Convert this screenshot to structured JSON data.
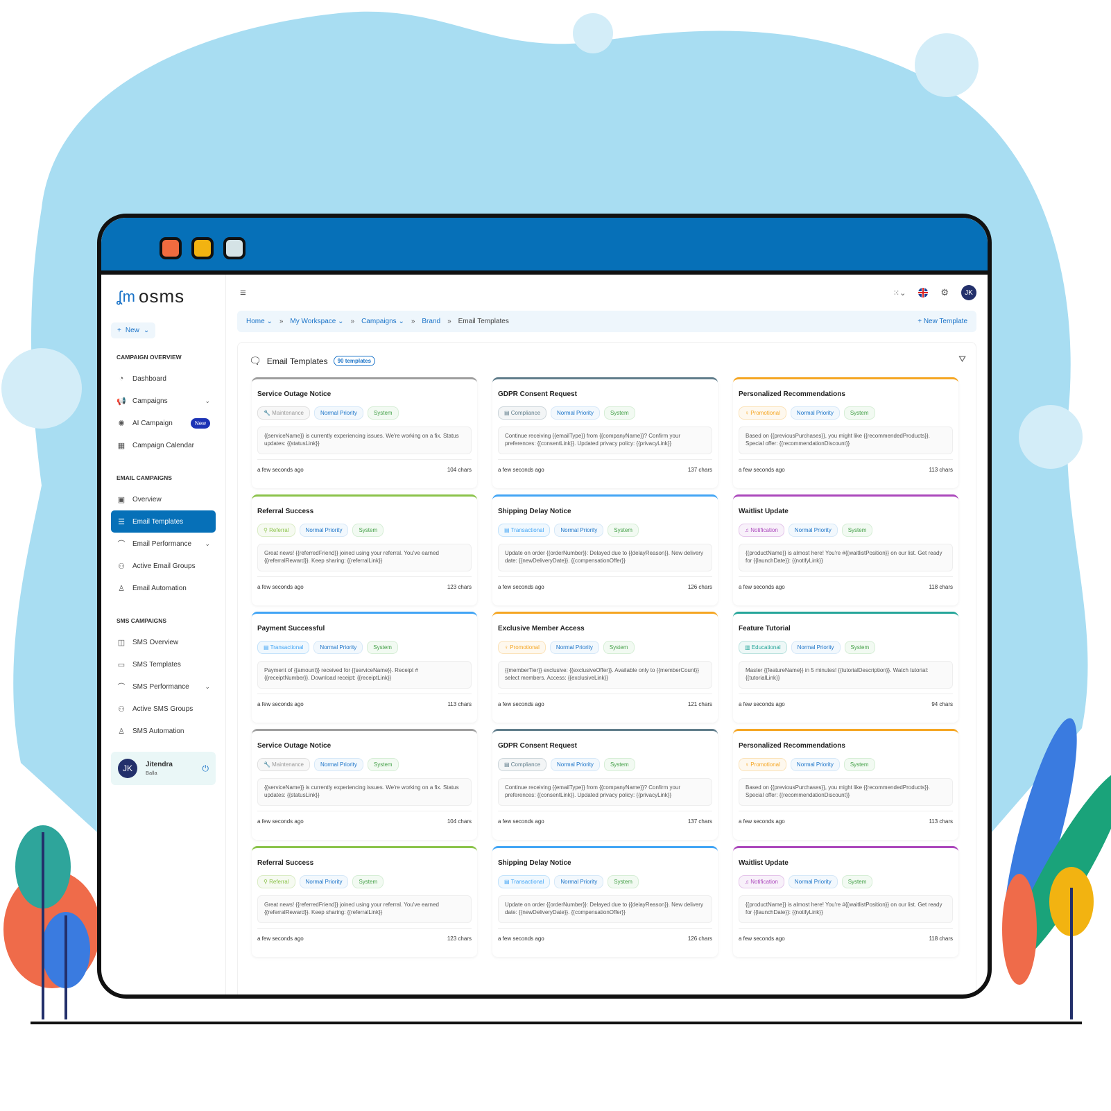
{
  "colors": {
    "brand": "#0670b8",
    "background_blob": "#a8ddf2"
  },
  "window_controls": [
    {
      "name": "close",
      "color": "#f06b3f"
    },
    {
      "name": "minimize",
      "color": "#f2b311"
    },
    {
      "name": "maximize",
      "color": "#d5e3e6"
    }
  ],
  "sidebar": {
    "logo": "osms",
    "new_label": "New",
    "sections": [
      {
        "title": "CAMPAIGN OVERVIEW",
        "items": [
          {
            "label": "Dashboard",
            "icon": "dashboard-icon"
          },
          {
            "label": "Campaigns",
            "icon": "megaphone-icon",
            "chevron": true
          },
          {
            "label": "AI Campaign",
            "icon": "ai-icon",
            "badge": "New"
          },
          {
            "label": "Campaign Calendar",
            "icon": "calendar-icon"
          }
        ]
      },
      {
        "title": "EMAIL CAMPAIGNS",
        "items": [
          {
            "label": "Overview",
            "icon": "grid-icon"
          },
          {
            "label": "Email Templates",
            "icon": "template-icon",
            "active": true
          },
          {
            "label": "Email Performance",
            "icon": "chart-icon",
            "chevron": true
          },
          {
            "label": "Active Email Groups",
            "icon": "group-icon"
          },
          {
            "label": "Email Automation",
            "icon": "robot-icon"
          }
        ]
      },
      {
        "title": "SMS CAMPAIGNS",
        "items": [
          {
            "label": "SMS Overview",
            "icon": "devices-icon"
          },
          {
            "label": "SMS Templates",
            "icon": "message-icon"
          },
          {
            "label": "SMS Performance",
            "icon": "chart-icon",
            "chevron": true
          },
          {
            "label": "Active SMS Groups",
            "icon": "group-icon"
          },
          {
            "label": "SMS Automation",
            "icon": "robot-icon"
          }
        ]
      }
    ],
    "user": {
      "initials": "JK",
      "first": "Jitendra",
      "last": "Balla"
    }
  },
  "header": {
    "avatar": "JK"
  },
  "breadcrumb": {
    "items": [
      "Home",
      "My Workspace",
      "Campaigns",
      "Brand"
    ],
    "current": "Email Templates",
    "new_template": "New Template"
  },
  "panel": {
    "title": "Email Templates",
    "count": "90 templates"
  },
  "tag_colors": {
    "Maintenance": "#9e9e9e",
    "Compliance": "#607d8b",
    "Promotional": "#f5a623",
    "Referral": "#8bc34a",
    "Transactional": "#42a5f5",
    "Notification": "#ab47bc",
    "Educational": "#26a69a"
  },
  "cards": [
    {
      "title": "Service Outage Notice",
      "category": "Maintenance",
      "priority": "Normal Priority",
      "source": "System",
      "body": "{{serviceName}} is currently experiencing issues. We're working on a fix. Status updates: {{statusLink}}",
      "time": "a few seconds ago",
      "chars": "104 chars"
    },
    {
      "title": "GDPR Consent Request",
      "category": "Compliance",
      "priority": "Normal Priority",
      "source": "System",
      "body": "Continue receiving {{emailType}} from {{companyName}}? Confirm your preferences: {{consentLink}}. Updated privacy policy: {{privacyLink}}",
      "time": "a few seconds ago",
      "chars": "137 chars"
    },
    {
      "title": "Personalized Recommendations",
      "category": "Promotional",
      "priority": "Normal Priority",
      "source": "System",
      "body": "Based on {{previousPurchases}}, you might like {{recommendedProducts}}. Special offer: {{recommendationDiscount}}",
      "time": "a few seconds ago",
      "chars": "113 chars"
    },
    {
      "title": "Referral Success",
      "category": "Referral",
      "priority": "Normal Priority",
      "source": "System",
      "body": "Great news! {{referredFriend}} joined using your referral. You've earned {{referralReward}}. Keep sharing: {{referralLink}}",
      "time": "a few seconds ago",
      "chars": "123 chars"
    },
    {
      "title": "Shipping Delay Notice",
      "category": "Transactional",
      "priority": "Normal Priority",
      "source": "System",
      "body": "Update on order {{orderNumber}}: Delayed due to {{delayReason}}. New delivery date: {{newDeliveryDate}}. {{compensationOffer}}",
      "time": "a few seconds ago",
      "chars": "126 chars"
    },
    {
      "title": "Waitlist Update",
      "category": "Notification",
      "priority": "Normal Priority",
      "source": "System",
      "body": "{{productName}} is almost here! You're #{{waitlistPosition}} on our list. Get ready for {{launchDate}}: {{notifyLink}}",
      "time": "a few seconds ago",
      "chars": "118 chars"
    },
    {
      "title": "Payment Successful",
      "category": "Transactional",
      "priority": "Normal Priority",
      "source": "System",
      "body": "Payment of {{amount}} received for {{serviceName}}. Receipt # {{receiptNumber}}. Download receipt: {{receiptLink}}",
      "time": "a few seconds ago",
      "chars": "113 chars"
    },
    {
      "title": "Exclusive Member Access",
      "category": "Promotional",
      "priority": "Normal Priority",
      "source": "System",
      "body": "{{memberTier}} exclusive: {{exclusiveOffer}}. Available only to {{memberCount}} select members. Access: {{exclusiveLink}}",
      "time": "a few seconds ago",
      "chars": "121 chars"
    },
    {
      "title": "Feature Tutorial",
      "category": "Educational",
      "priority": "Normal Priority",
      "source": "System",
      "body": "Master {{featureName}} in 5 minutes! {{tutorialDescription}}. Watch tutorial: {{tutorialLink}}",
      "time": "a few seconds ago",
      "chars": "94 chars"
    },
    {
      "title": "Service Outage Notice",
      "category": "Maintenance",
      "priority": "Normal Priority",
      "source": "System",
      "body": "{{serviceName}} is currently experiencing issues. We're working on a fix. Status updates: {{statusLink}}",
      "time": "a few seconds ago",
      "chars": "104 chars"
    },
    {
      "title": "GDPR Consent Request",
      "category": "Compliance",
      "priority": "Normal Priority",
      "source": "System",
      "body": "Continue receiving {{emailType}} from {{companyName}}? Confirm your preferences: {{consentLink}}. Updated privacy policy: {{privacyLink}}",
      "time": "a few seconds ago",
      "chars": "137 chars"
    },
    {
      "title": "Personalized Recommendations",
      "category": "Promotional",
      "priority": "Normal Priority",
      "source": "System",
      "body": "Based on {{previousPurchases}}, you might like {{recommendedProducts}}. Special offer: {{recommendationDiscount}}",
      "time": "a few seconds ago",
      "chars": "113 chars"
    },
    {
      "title": "Referral Success",
      "category": "Referral",
      "priority": "Normal Priority",
      "source": "System",
      "body": "Great news! {{referredFriend}} joined using your referral. You've earned {{referralReward}}. Keep sharing: {{referralLink}}",
      "time": "a few seconds ago",
      "chars": "123 chars"
    },
    {
      "title": "Shipping Delay Notice",
      "category": "Transactional",
      "priority": "Normal Priority",
      "source": "System",
      "body": "Update on order {{orderNumber}}: Delayed due to {{delayReason}}. New delivery date: {{newDeliveryDate}}. {{compensationOffer}}",
      "time": "a few seconds ago",
      "chars": "126 chars"
    },
    {
      "title": "Waitlist Update",
      "category": "Notification",
      "priority": "Normal Priority",
      "source": "System",
      "body": "{{productName}} is almost here! You're #{{waitlistPosition}} on our list. Get ready for {{launchDate}}: {{notifyLink}}",
      "time": "a few seconds ago",
      "chars": "118 chars"
    }
  ]
}
